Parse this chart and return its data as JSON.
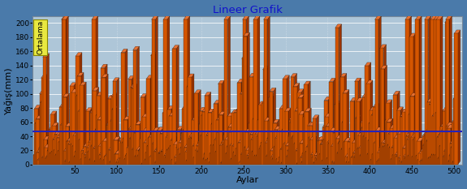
{
  "title": "Lineer Grafik",
  "xlabel": "Aylar",
  "ylabel": "Yağış(mm)",
  "legend_label": "Ortalama",
  "xlim": [
    0,
    510
  ],
  "ylim": [
    0,
    210
  ],
  "yticks": [
    0,
    20,
    40,
    60,
    80,
    100,
    120,
    140,
    160,
    180,
    200
  ],
  "xticks": [
    50,
    100,
    150,
    200,
    250,
    300,
    350,
    400,
    450,
    500
  ],
  "avg_line_y": 47,
  "avg_line_color": "#2222bb",
  "bar_face_color": "#d45500",
  "bar_top_color": "#e87030",
  "bar_side_color": "#993300",
  "bar_edge_color": "#1a0a00",
  "background_outer": "#4a7aaa",
  "background_plot": "#aec6d8",
  "title_color": "#1111cc",
  "axis_label_color": "#000000",
  "legend_box_color_top": "#e8e840",
  "legend_box_color_bot": "#c8c800",
  "num_bars": 500,
  "bar_width": 4.5,
  "depth_x": 3.0,
  "depth_y": 5.0,
  "seed": 42
}
